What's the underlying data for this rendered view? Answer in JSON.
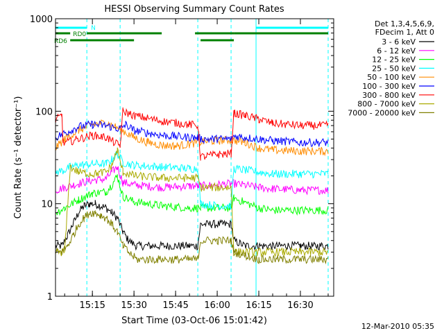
{
  "chart_data": {
    "type": "line",
    "title": "HESSI Observing Summary Count Rates",
    "xlabel": "Start Time (03-Oct-06 15:01:42)",
    "ylabel": "Count Rate (s⁻¹ detector⁻¹)",
    "yscale": "log",
    "ylim": [
      1,
      1000
    ],
    "xlim": [
      "15:01:42",
      "16:42:00"
    ],
    "x_ticks": [
      "15:15",
      "15:30",
      "15:45",
      "16:00",
      "16:15",
      "16:30"
    ],
    "y_ticks": [
      "1",
      "10",
      "100",
      "1000"
    ],
    "date_stamp": "12-Mar-2010 05:35",
    "legend_header": [
      "Det 1,3,4,5,6,9,",
      "FDecim 1, Att 0"
    ],
    "series": [
      {
        "name": "3 - 6 keV",
        "color": "#000000",
        "x": [
          "15:01:42",
          "15:04",
          "15:06",
          "15:08",
          "15:10",
          "15:12",
          "15:14",
          "15:16",
          "15:18",
          "15:20",
          "15:22",
          "15:24",
          "15:26",
          "15:28",
          "15:31",
          "15:35",
          "15:40",
          "15:45",
          "15:50",
          "15:53",
          "15:54",
          "15:58",
          "16:02",
          "16:05",
          "16:06",
          "16:10",
          "16:15",
          "16:20",
          "16:25",
          "16:30",
          "16:35",
          "16:40"
        ],
        "y": [
          3.5,
          3.5,
          4.5,
          6,
          8,
          9.5,
          10,
          10,
          9.5,
          9,
          8,
          7,
          5,
          4,
          3.5,
          3.5,
          3.5,
          3.5,
          3.5,
          3.5,
          6,
          6,
          6,
          6,
          4,
          3.5,
          3.5,
          3.5,
          3.5,
          3.5,
          3.5,
          3.5
        ]
      },
      {
        "name": "6 - 12 keV",
        "color": "#ff00ff",
        "x": [
          "15:01:42",
          "15:05",
          "15:10",
          "15:15",
          "15:20",
          "15:22",
          "15:24",
          "15:26",
          "15:30",
          "15:40",
          "15:50",
          "15:53",
          "15:54",
          "16:00",
          "16:05",
          "16:06",
          "16:15",
          "16:20",
          "16:30",
          "16:40"
        ],
        "y": [
          14,
          15,
          16.5,
          18,
          18.5,
          22,
          25,
          17,
          16,
          15,
          15.5,
          15.5,
          15.5,
          16,
          16.5,
          16.5,
          15,
          14.5,
          14,
          14
        ]
      },
      {
        "name": "12 - 25 keV",
        "color": "#00ff00",
        "x": [
          "15:01:42",
          "15:05",
          "15:10",
          "15:15",
          "15:20",
          "15:22",
          "15:24",
          "15:26",
          "15:30",
          "15:40",
          "15:50",
          "15:53",
          "15:54",
          "16:00",
          "16:05",
          "16:06",
          "16:15",
          "16:20",
          "16:30",
          "16:40"
        ],
        "y": [
          8,
          9,
          11,
          13,
          13.5,
          16,
          20,
          12,
          10.5,
          9.5,
          9,
          9,
          9,
          9,
          9,
          11.5,
          9,
          8.5,
          8.5,
          8.5
        ]
      },
      {
        "name": "25 - 50 keV",
        "color": "#00ffff",
        "x": [
          "15:01:42",
          "15:05",
          "15:07",
          "15:10",
          "15:15",
          "15:20",
          "15:22",
          "15:24",
          "15:26",
          "15:30",
          "15:40",
          "15:50",
          "15:53",
          "15:54",
          "16:00",
          "16:05",
          "16:06",
          "16:15",
          "16:20",
          "16:30",
          "16:40"
        ],
        "y": [
          22,
          23,
          25,
          26,
          27,
          27,
          30,
          35,
          28,
          26,
          25,
          24,
          24,
          10,
          9.5,
          9.5,
          24,
          22,
          21,
          21,
          21
        ]
      },
      {
        "name": "50 - 100 keV",
        "color": "#ff8c00",
        "x": [
          "15:01:42",
          "15:05",
          "15:10",
          "15:15",
          "15:20",
          "15:25",
          "15:30",
          "15:35",
          "15:40",
          "15:45",
          "15:50",
          "15:55",
          "16:00",
          "16:05",
          "16:10",
          "16:15",
          "16:20",
          "16:30",
          "16:40"
        ],
        "y": [
          40,
          50,
          62,
          72,
          75,
          64,
          52,
          46,
          43,
          42,
          44,
          47,
          48,
          49,
          46,
          40,
          38,
          37,
          37
        ]
      },
      {
        "name": "100 - 300 keV",
        "color": "#0000ff",
        "x": [
          "15:01:42",
          "15:05",
          "15:10",
          "15:15",
          "15:20",
          "15:25",
          "15:27",
          "15:30",
          "15:40",
          "15:50",
          "15:53",
          "15:54",
          "16:00",
          "16:05",
          "16:06",
          "16:15",
          "16:20",
          "16:30",
          "16:40"
        ],
        "y": [
          52,
          58,
          68,
          72,
          70,
          64,
          72,
          62,
          55,
          52,
          52,
          50,
          50,
          50,
          54,
          50,
          48,
          46,
          46
        ]
      },
      {
        "name": "300 - 800 keV",
        "color": "#ff0000",
        "x": [
          "15:01:42",
          "15:04",
          "15:04.5",
          "15:10",
          "15:15",
          "15:20",
          "15:25",
          "15:26",
          "15:30",
          "15:40",
          "15:50",
          "15:53",
          "15:54",
          "16:00",
          "16:05",
          "16:06",
          "16:10",
          "16:15",
          "16:20",
          "16:30",
          "16:40"
        ],
        "y": [
          80,
          90,
          45,
          50,
          55,
          52,
          42,
          100,
          90,
          78,
          72,
          70,
          32,
          34,
          35,
          95,
          90,
          82,
          74,
          70,
          70
        ]
      },
      {
        "name": "800 - 7000 keV",
        "color": "#aaaa00",
        "x": [
          "15:01:42",
          "15:05",
          "15:07",
          "15:10",
          "15:15",
          "15:20",
          "15:22",
          "15:24",
          "15:26",
          "15:30",
          "15:40",
          "15:50",
          "15:53",
          "15:54",
          "16:00",
          "16:05",
          "16:06",
          "16:15",
          "16:20",
          "16:30",
          "16:40"
        ],
        "y": [
          3,
          3,
          25,
          22,
          21,
          22,
          26,
          38,
          22,
          20,
          19,
          19,
          19,
          15,
          15,
          15,
          3,
          3,
          3,
          3,
          3
        ]
      },
      {
        "name": "7000 - 20000 keV",
        "color": "#808000",
        "x": [
          "15:01:42",
          "15:04",
          "15:06",
          "15:08",
          "15:10",
          "15:12",
          "15:14",
          "15:16",
          "15:18",
          "15:20",
          "15:22",
          "15:24",
          "15:26",
          "15:28",
          "15:31",
          "15:35",
          "15:40",
          "15:45",
          "15:50",
          "15:53",
          "15:54",
          "16:00",
          "16:05",
          "16:06",
          "16:15",
          "16:20",
          "16:30",
          "16:40"
        ],
        "y": [
          3,
          3,
          3.5,
          4.5,
          6,
          7,
          8,
          8,
          7.5,
          7,
          6,
          5,
          3.5,
          3,
          2.5,
          2.5,
          2.5,
          2.5,
          2.5,
          2.5,
          4,
          4,
          4,
          3,
          2.5,
          2.5,
          2.5,
          2.5
        ]
      }
    ],
    "flags": [
      {
        "label": "N",
        "color": "#00ffff",
        "segments": [
          [
            "15:01:42",
            "15:13"
          ],
          [
            "16:14",
            "16:40"
          ]
        ]
      },
      {
        "label": "RD0",
        "color": "#008000",
        "segments": [
          [
            "15:01:42",
            "15:07"
          ]
        ]
      },
      {
        "label": "",
        "color": "#008000",
        "segments": [
          [
            "15:13",
            "15:40"
          ],
          [
            "15:52",
            "16:06"
          ],
          [
            "16:06",
            "16:40"
          ]
        ]
      },
      {
        "label": "RD6",
        "color": "#008000",
        "segments": [
          [
            "15:07",
            "15:25"
          ],
          [
            "15:25",
            "15:30"
          ],
          [
            "15:54",
            "16:06"
          ]
        ]
      }
    ],
    "vertical_markers": [
      {
        "time": "15:01:42",
        "color": "#00ffff",
        "style": "solid"
      },
      {
        "time": "15:13",
        "color": "#00ffff",
        "style": "dashed"
      },
      {
        "time": "15:25",
        "color": "#00ffff",
        "style": "dashed"
      },
      {
        "time": "15:53",
        "color": "#00ffff",
        "style": "dashed"
      },
      {
        "time": "16:05",
        "color": "#00ffff",
        "style": "dashed"
      },
      {
        "time": "16:14",
        "color": "#00ffff",
        "style": "solid"
      },
      {
        "time": "16:40",
        "color": "#00ffff",
        "style": "dashed"
      }
    ],
    "grid": false,
    "legend_position": "top-right outside"
  }
}
